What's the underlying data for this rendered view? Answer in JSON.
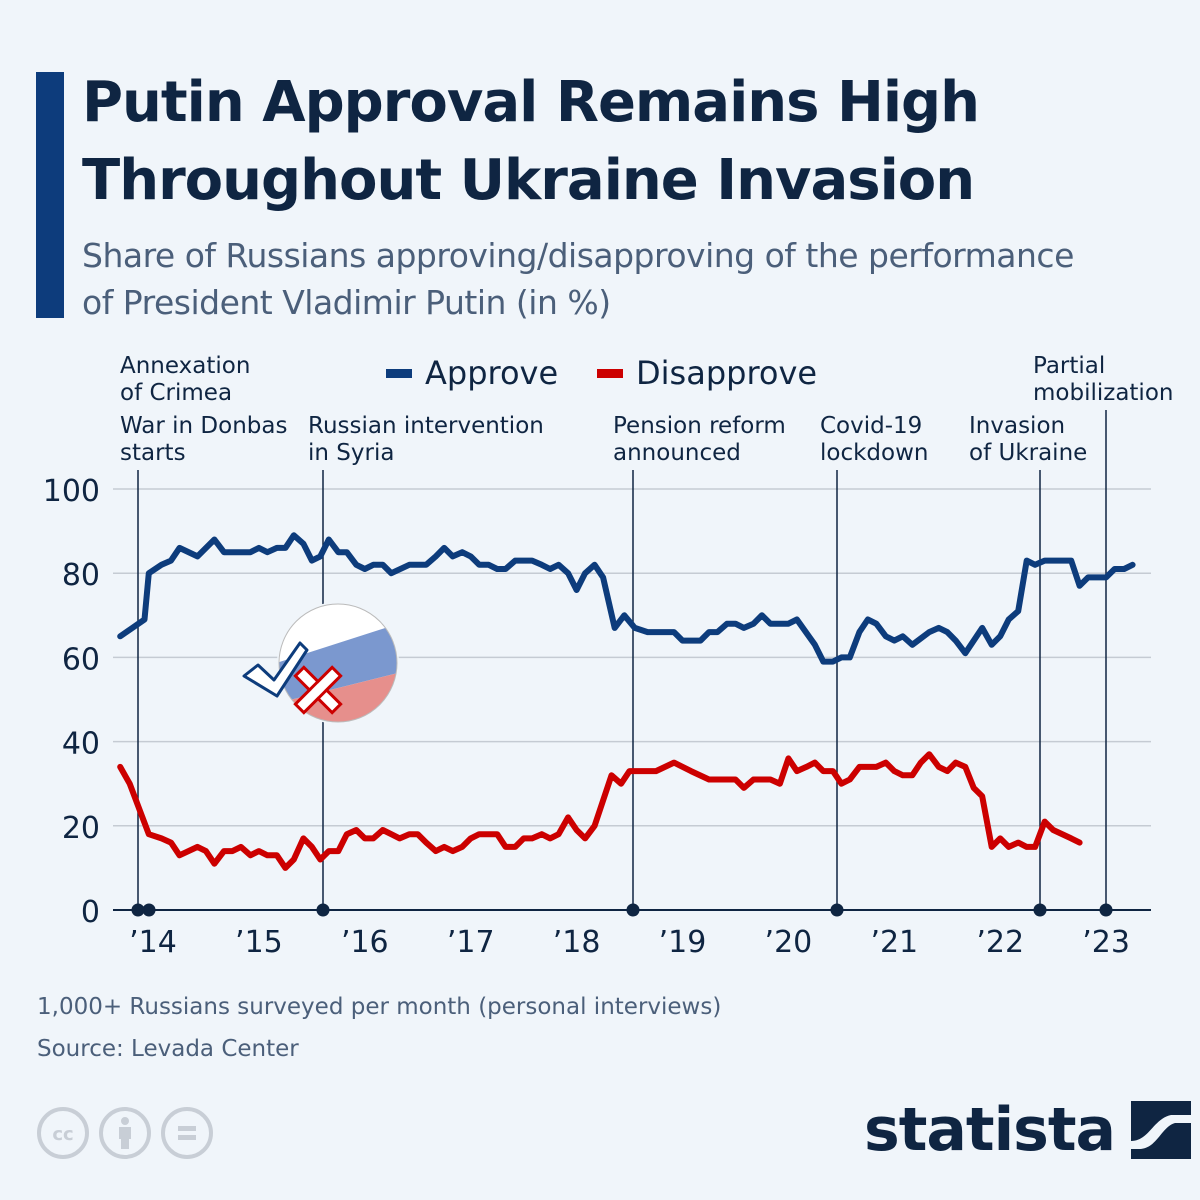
{
  "header": {
    "title": "Putin Approval Remains High Throughout Ukraine Invasion",
    "subtitle": "Share of Russians approving/disapproving of the performance of President Vladimir Putin (in %)"
  },
  "colors": {
    "approve": "#0d3c7c",
    "disapprove": "#cc0000",
    "text": "#0f2542",
    "accent": "#0d3c7c",
    "background": "#f0f5fa"
  },
  "chart_data": {
    "type": "line",
    "title": "Putin Approval Remains High Throughout Ukraine Invasion",
    "subtitle": "Share of Russians approving/disapproving of the performance of President Vladimir Putin (in %)",
    "xlabel": "",
    "ylabel": "",
    "x_unit": "year (fractional)",
    "xlim": [
      2013.69,
      2023.39
    ],
    "ylim": [
      0,
      100
    ],
    "yticks": [
      0,
      20,
      40,
      60,
      80,
      100
    ],
    "xticks": [
      {
        "year": 2014,
        "label": "’14"
      },
      {
        "year": 2015,
        "label": "’15"
      },
      {
        "year": 2016,
        "label": "’16"
      },
      {
        "year": 2017,
        "label": "’17"
      },
      {
        "year": 2018,
        "label": "’18"
      },
      {
        "year": 2019,
        "label": "’19"
      },
      {
        "year": 2020,
        "label": "’20"
      },
      {
        "year": 2021,
        "label": "’21"
      },
      {
        "year": 2022,
        "label": "’22"
      },
      {
        "year": 2023,
        "label": "’23"
      }
    ],
    "grid": true,
    "legend": {
      "position": "top-center",
      "entries": [
        {
          "name": "Approve",
          "color": "#0d3c7c"
        },
        {
          "name": "Disapprove",
          "color": "#cc0000"
        }
      ]
    },
    "series": [
      {
        "name": "Approve",
        "color": "#0d3c7c",
        "points": [
          [
            2013.69,
            65
          ],
          [
            2013.92,
            69
          ],
          [
            2013.96,
            80
          ],
          [
            2014.08,
            82
          ],
          [
            2014.17,
            83
          ],
          [
            2014.25,
            86
          ],
          [
            2014.42,
            84
          ],
          [
            2014.58,
            88
          ],
          [
            2014.67,
            85
          ],
          [
            2014.92,
            85
          ],
          [
            2015.0,
            86
          ],
          [
            2015.08,
            85
          ],
          [
            2015.17,
            86
          ],
          [
            2015.25,
            86
          ],
          [
            2015.33,
            89
          ],
          [
            2015.42,
            87
          ],
          [
            2015.5,
            83
          ],
          [
            2015.58,
            84
          ],
          [
            2015.66,
            88
          ],
          [
            2015.75,
            85
          ],
          [
            2015.83,
            85
          ],
          [
            2015.92,
            82
          ],
          [
            2016.0,
            81
          ],
          [
            2016.08,
            82
          ],
          [
            2016.17,
            82
          ],
          [
            2016.25,
            80
          ],
          [
            2016.42,
            82
          ],
          [
            2016.58,
            82
          ],
          [
            2016.67,
            84
          ],
          [
            2016.75,
            86
          ],
          [
            2016.83,
            84
          ],
          [
            2016.92,
            85
          ],
          [
            2017.0,
            84
          ],
          [
            2017.08,
            82
          ],
          [
            2017.17,
            82
          ],
          [
            2017.25,
            81
          ],
          [
            2017.33,
            81
          ],
          [
            2017.42,
            83
          ],
          [
            2017.58,
            83
          ],
          [
            2017.67,
            82
          ],
          [
            2017.75,
            81
          ],
          [
            2017.83,
            82
          ],
          [
            2017.92,
            80
          ],
          [
            2018.0,
            76
          ],
          [
            2018.08,
            80
          ],
          [
            2018.17,
            82
          ],
          [
            2018.25,
            79
          ],
          [
            2018.36,
            67
          ],
          [
            2018.45,
            70
          ],
          [
            2018.55,
            67
          ],
          [
            2018.67,
            66
          ],
          [
            2018.92,
            66
          ],
          [
            2019.0,
            64
          ],
          [
            2019.17,
            64
          ],
          [
            2019.25,
            66
          ],
          [
            2019.33,
            66
          ],
          [
            2019.42,
            68
          ],
          [
            2019.5,
            68
          ],
          [
            2019.58,
            67
          ],
          [
            2019.67,
            68
          ],
          [
            2019.75,
            70
          ],
          [
            2019.83,
            68
          ],
          [
            2019.92,
            68
          ],
          [
            2020.0,
            68
          ],
          [
            2020.08,
            69
          ],
          [
            2020.25,
            63
          ],
          [
            2020.33,
            59
          ],
          [
            2020.42,
            59
          ],
          [
            2020.5,
            60
          ],
          [
            2020.58,
            60
          ],
          [
            2020.67,
            66
          ],
          [
            2020.75,
            69
          ],
          [
            2020.83,
            68
          ],
          [
            2020.92,
            65
          ],
          [
            2021.0,
            64
          ],
          [
            2021.08,
            65
          ],
          [
            2021.17,
            63
          ],
          [
            2021.33,
            66
          ],
          [
            2021.42,
            67
          ],
          [
            2021.5,
            66
          ],
          [
            2021.58,
            64
          ],
          [
            2021.67,
            61
          ],
          [
            2021.83,
            67
          ],
          [
            2021.92,
            63
          ],
          [
            2022.0,
            65
          ],
          [
            2022.08,
            69
          ],
          [
            2022.17,
            71
          ],
          [
            2022.25,
            83
          ],
          [
            2022.33,
            82
          ],
          [
            2022.42,
            83
          ],
          [
            2022.67,
            83
          ],
          [
            2022.75,
            77
          ],
          [
            2022.83,
            79
          ],
          [
            2022.92,
            79
          ],
          [
            2023.0,
            79
          ],
          [
            2023.08,
            81
          ],
          [
            2023.17,
            81
          ],
          [
            2023.25,
            82
          ]
        ]
      },
      {
        "name": "Disapprove",
        "color": "#cc0000",
        "points": [
          [
            2013.69,
            34
          ],
          [
            2013.78,
            30
          ],
          [
            2013.96,
            18
          ],
          [
            2014.08,
            17
          ],
          [
            2014.17,
            16
          ],
          [
            2014.25,
            13
          ],
          [
            2014.42,
            15
          ],
          [
            2014.5,
            14
          ],
          [
            2014.58,
            11
          ],
          [
            2014.67,
            14
          ],
          [
            2014.75,
            14
          ],
          [
            2014.83,
            15
          ],
          [
            2014.92,
            13
          ],
          [
            2015.0,
            14
          ],
          [
            2015.08,
            13
          ],
          [
            2015.17,
            13
          ],
          [
            2015.25,
            10
          ],
          [
            2015.33,
            12
          ],
          [
            2015.42,
            17
          ],
          [
            2015.5,
            15
          ],
          [
            2015.58,
            12
          ],
          [
            2015.66,
            14
          ],
          [
            2015.75,
            14
          ],
          [
            2015.83,
            18
          ],
          [
            2015.92,
            19
          ],
          [
            2016.0,
            17
          ],
          [
            2016.08,
            17
          ],
          [
            2016.17,
            19
          ],
          [
            2016.25,
            18
          ],
          [
            2016.33,
            17
          ],
          [
            2016.42,
            18
          ],
          [
            2016.5,
            18
          ],
          [
            2016.58,
            16
          ],
          [
            2016.67,
            14
          ],
          [
            2016.75,
            15
          ],
          [
            2016.83,
            14
          ],
          [
            2016.92,
            15
          ],
          [
            2017.0,
            17
          ],
          [
            2017.08,
            18
          ],
          [
            2017.25,
            18
          ],
          [
            2017.33,
            15
          ],
          [
            2017.42,
            15
          ],
          [
            2017.5,
            17
          ],
          [
            2017.58,
            17
          ],
          [
            2017.67,
            18
          ],
          [
            2017.75,
            17
          ],
          [
            2017.83,
            18
          ],
          [
            2017.92,
            22
          ],
          [
            2018.0,
            19
          ],
          [
            2018.08,
            17
          ],
          [
            2018.17,
            20
          ],
          [
            2018.33,
            32
          ],
          [
            2018.42,
            30
          ],
          [
            2018.5,
            33
          ],
          [
            2018.67,
            33
          ],
          [
            2018.75,
            33
          ],
          [
            2018.92,
            35
          ],
          [
            2019.08,
            33
          ],
          [
            2019.25,
            31
          ],
          [
            2019.5,
            31
          ],
          [
            2019.58,
            29
          ],
          [
            2019.67,
            31
          ],
          [
            2019.83,
            31
          ],
          [
            2019.92,
            30
          ],
          [
            2020.0,
            36
          ],
          [
            2020.08,
            33
          ],
          [
            2020.17,
            34
          ],
          [
            2020.25,
            35
          ],
          [
            2020.33,
            33
          ],
          [
            2020.42,
            33
          ],
          [
            2020.5,
            30
          ],
          [
            2020.58,
            31
          ],
          [
            2020.67,
            34
          ],
          [
            2020.83,
            34
          ],
          [
            2020.92,
            35
          ],
          [
            2021.0,
            33
          ],
          [
            2021.08,
            32
          ],
          [
            2021.17,
            32
          ],
          [
            2021.25,
            35
          ],
          [
            2021.33,
            37
          ],
          [
            2021.42,
            34
          ],
          [
            2021.5,
            33
          ],
          [
            2021.58,
            35
          ],
          [
            2021.67,
            34
          ],
          [
            2021.75,
            29
          ],
          [
            2021.83,
            27
          ],
          [
            2021.92,
            15
          ],
          [
            2022.0,
            17
          ],
          [
            2022.08,
            15
          ],
          [
            2022.17,
            16
          ],
          [
            2022.25,
            15
          ],
          [
            2022.33,
            15
          ],
          [
            2022.42,
            21
          ],
          [
            2022.5,
            19
          ],
          [
            2022.67,
            17
          ],
          [
            2022.75,
            16
          ]
        ]
      }
    ],
    "annotations": [
      {
        "label": "Annexation of Crimea",
        "year": 2014.17,
        "line": "Annexation\nof Crimea"
      },
      {
        "label": "War in Donbas starts",
        "year": 2014.0,
        "line": "War in Donbas\nstarts"
      },
      {
        "label": "Russian intervention in Syria",
        "year": 2015.75,
        "line": "Russian intervention\nin Syria"
      },
      {
        "label": "Pension reform announced",
        "year": 2018.46,
        "line": "Pension reform\nannounced"
      },
      {
        "label": "Covid-19 lockdown",
        "year": 2020.24,
        "line": "Covid-19\nlockdown"
      },
      {
        "label": "Invasion of Ukraine",
        "year": 2022.15,
        "line": "Invasion\nof Ukraine"
      },
      {
        "label": "Partial mobilization",
        "year": 2022.72,
        "line": "Partial\nmobilization"
      }
    ]
  },
  "legend": {
    "approve_label": "Approve",
    "disapprove_label": "Disapprove"
  },
  "events": [
    {
      "line1": "Annexation",
      "line2": "of Crimea"
    },
    {
      "line1": "War in Donbas",
      "line2": "starts"
    },
    {
      "line1": "Russian intervention",
      "line2": "in Syria"
    },
    {
      "line1": "Pension reform",
      "line2": "announced"
    },
    {
      "line1": "Covid-19",
      "line2": "lockdown"
    },
    {
      "line1": "Invasion",
      "line2": "of Ukraine"
    },
    {
      "line1": "Partial",
      "line2": "mobilization"
    }
  ],
  "footer": {
    "note": "1,000+ Russians surveyed per month (personal interviews)",
    "source": "Source: Levada Center",
    "brand": "statista",
    "license_icons": [
      "cc-icon",
      "attribution-icon",
      "no-derivatives-icon"
    ]
  }
}
